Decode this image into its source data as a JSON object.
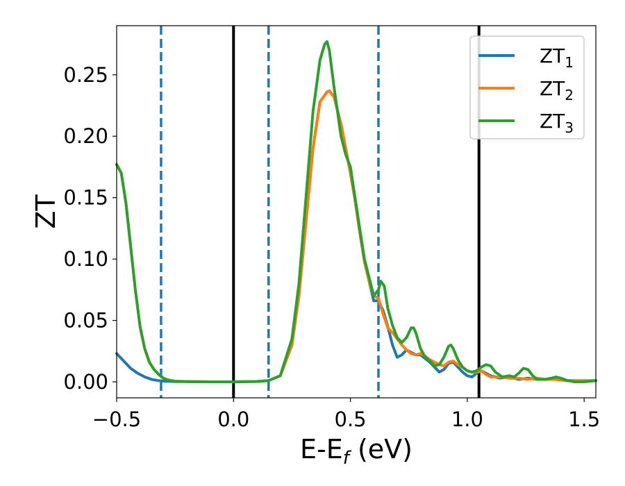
{
  "chart_data": {
    "type": "line",
    "xlabel": {
      "main": "E-E",
      "sub": "f",
      "unit": " (eV)"
    },
    "ylabel": "ZT",
    "xlim": [
      -0.5,
      1.55
    ],
    "ylim": [
      -0.013,
      0.29
    ],
    "x_ticks": [
      {
        "value": -0.5,
        "label": "−0.5"
      },
      {
        "value": 0.0,
        "label": "0.0"
      },
      {
        "value": 0.5,
        "label": "0.5"
      },
      {
        "value": 1.0,
        "label": "1.0"
      },
      {
        "value": 1.5,
        "label": "1.5"
      }
    ],
    "y_ticks": [
      {
        "value": 0.0,
        "label": "0.00"
      },
      {
        "value": 0.05,
        "label": "0.05"
      },
      {
        "value": 0.1,
        "label": "0.10"
      },
      {
        "value": 0.15,
        "label": "0.15"
      },
      {
        "value": 0.2,
        "label": "0.20"
      },
      {
        "value": 0.25,
        "label": "0.25"
      }
    ],
    "grid": false,
    "legend_position": "top-right",
    "vertical_lines": [
      {
        "x": -0.31,
        "style": "dashed",
        "color": "#1f77b4"
      },
      {
        "x": 0.0,
        "style": "solid",
        "color": "#000000"
      },
      {
        "x": 0.15,
        "style": "dashed",
        "color": "#1f77b4"
      },
      {
        "x": 0.62,
        "style": "dashed",
        "color": "#1f77b4"
      },
      {
        "x": 1.05,
        "style": "solid",
        "color": "#000000"
      }
    ],
    "series": [
      {
        "name": "ZT",
        "subscript": "1",
        "color": "#1f77b4",
        "x": [
          -0.5,
          -0.47,
          -0.44,
          -0.41,
          -0.38,
          -0.35,
          -0.32,
          -0.29,
          -0.25,
          -0.2,
          -0.1,
          0.0,
          0.1,
          0.15,
          0.2,
          0.25,
          0.28,
          0.31,
          0.34,
          0.37,
          0.4,
          0.41,
          0.43,
          0.46,
          0.48,
          0.5,
          0.52,
          0.54,
          0.56,
          0.58,
          0.6,
          0.62,
          0.64,
          0.66,
          0.68,
          0.7,
          0.72,
          0.74,
          0.76,
          0.78,
          0.8,
          0.82,
          0.84,
          0.86,
          0.88,
          0.9,
          0.92,
          0.94,
          0.96,
          0.98,
          1.0,
          1.02,
          1.04,
          1.06,
          1.08,
          1.1,
          1.14,
          1.18,
          1.22,
          1.26,
          1.3,
          1.34,
          1.38,
          1.42,
          1.46,
          1.5,
          1.55
        ],
        "y": [
          0.023,
          0.017,
          0.011,
          0.007,
          0.004,
          0.002,
          0.001,
          0.0005,
          0.0002,
          0.0001,
          0.0,
          0.0,
          0.0003,
          0.001,
          0.005,
          0.03,
          0.07,
          0.13,
          0.19,
          0.228,
          0.236,
          0.237,
          0.232,
          0.21,
          0.19,
          0.17,
          0.148,
          0.122,
          0.098,
          0.082,
          0.066,
          0.066,
          0.058,
          0.045,
          0.03,
          0.02,
          0.022,
          0.026,
          0.024,
          0.022,
          0.022,
          0.019,
          0.016,
          0.012,
          0.008,
          0.01,
          0.015,
          0.016,
          0.012,
          0.008,
          0.005,
          0.004,
          0.007,
          0.009,
          0.007,
          0.005,
          0.003,
          0.004,
          0.002,
          0.003,
          0.002,
          0.002,
          0.002,
          0.001,
          0.001,
          0.001,
          0.001
        ]
      },
      {
        "name": "ZT",
        "subscript": "2",
        "color": "#ff7f0e",
        "x": [
          -0.5,
          -0.48,
          -0.46,
          -0.44,
          -0.42,
          -0.4,
          -0.38,
          -0.36,
          -0.34,
          -0.32,
          -0.3,
          -0.28,
          -0.25,
          -0.2,
          -0.1,
          0.0,
          0.1,
          0.15,
          0.2,
          0.25,
          0.28,
          0.31,
          0.34,
          0.37,
          0.4,
          0.41,
          0.43,
          0.46,
          0.48,
          0.5,
          0.52,
          0.54,
          0.56,
          0.58,
          0.6,
          0.62,
          0.64,
          0.66,
          0.68,
          0.7,
          0.72,
          0.74,
          0.76,
          0.78,
          0.8,
          0.82,
          0.84,
          0.86,
          0.88,
          0.9,
          0.92,
          0.94,
          0.96,
          0.98,
          1.0,
          1.02,
          1.04,
          1.06,
          1.08,
          1.1,
          1.14,
          1.18,
          1.22,
          1.26,
          1.3,
          1.34,
          1.38,
          1.42,
          1.46,
          1.5,
          1.55
        ],
        "y": [
          0.177,
          0.17,
          0.145,
          0.11,
          0.075,
          0.045,
          0.027,
          0.016,
          0.01,
          0.006,
          0.003,
          0.0015,
          0.0005,
          0.0002,
          0.0,
          0.0,
          0.0003,
          0.001,
          0.005,
          0.03,
          0.07,
          0.13,
          0.19,
          0.228,
          0.236,
          0.237,
          0.232,
          0.21,
          0.19,
          0.17,
          0.148,
          0.122,
          0.098,
          0.082,
          0.07,
          0.068,
          0.055,
          0.044,
          0.04,
          0.035,
          0.03,
          0.026,
          0.023,
          0.022,
          0.023,
          0.021,
          0.018,
          0.016,
          0.014,
          0.013,
          0.016,
          0.017,
          0.014,
          0.012,
          0.009,
          0.008,
          0.008,
          0.009,
          0.006,
          0.004,
          0.004,
          0.003,
          0.003,
          0.002,
          0.003,
          0.002,
          0.002,
          0.001,
          0.001,
          0.001,
          0.001
        ]
      },
      {
        "name": "ZT",
        "subscript": "3",
        "color": "#2ca02c",
        "x": [
          -0.5,
          -0.48,
          -0.46,
          -0.44,
          -0.42,
          -0.4,
          -0.38,
          -0.36,
          -0.34,
          -0.32,
          -0.3,
          -0.28,
          -0.25,
          -0.2,
          -0.1,
          0.0,
          0.1,
          0.15,
          0.2,
          0.25,
          0.28,
          0.31,
          0.34,
          0.37,
          0.39,
          0.4,
          0.41,
          0.43,
          0.46,
          0.48,
          0.5,
          0.52,
          0.54,
          0.56,
          0.58,
          0.6,
          0.62,
          0.63,
          0.645,
          0.66,
          0.68,
          0.7,
          0.72,
          0.74,
          0.76,
          0.77,
          0.78,
          0.8,
          0.82,
          0.84,
          0.86,
          0.88,
          0.9,
          0.92,
          0.93,
          0.94,
          0.96,
          0.98,
          1.0,
          1.02,
          1.04,
          1.06,
          1.08,
          1.1,
          1.12,
          1.15,
          1.18,
          1.2,
          1.22,
          1.24,
          1.26,
          1.28,
          1.3,
          1.33,
          1.36,
          1.38,
          1.4,
          1.43,
          1.46,
          1.5,
          1.55
        ],
        "y": [
          0.177,
          0.17,
          0.145,
          0.11,
          0.075,
          0.045,
          0.027,
          0.016,
          0.01,
          0.006,
          0.003,
          0.0015,
          0.0005,
          0.0002,
          0.0,
          0.0,
          0.0003,
          0.001,
          0.005,
          0.035,
          0.08,
          0.15,
          0.22,
          0.262,
          0.275,
          0.277,
          0.27,
          0.24,
          0.2,
          0.185,
          0.175,
          0.15,
          0.125,
          0.1,
          0.085,
          0.07,
          0.075,
          0.082,
          0.078,
          0.06,
          0.046,
          0.036,
          0.032,
          0.036,
          0.044,
          0.044,
          0.04,
          0.027,
          0.02,
          0.017,
          0.013,
          0.014,
          0.02,
          0.029,
          0.03,
          0.027,
          0.018,
          0.012,
          0.009,
          0.008,
          0.009,
          0.012,
          0.014,
          0.013,
          0.008,
          0.004,
          0.005,
          0.004,
          0.007,
          0.011,
          0.01,
          0.005,
          0.002,
          0.002,
          0.003,
          0.004,
          0.003,
          0.001,
          0.0,
          0.0,
          0.001
        ]
      }
    ]
  }
}
